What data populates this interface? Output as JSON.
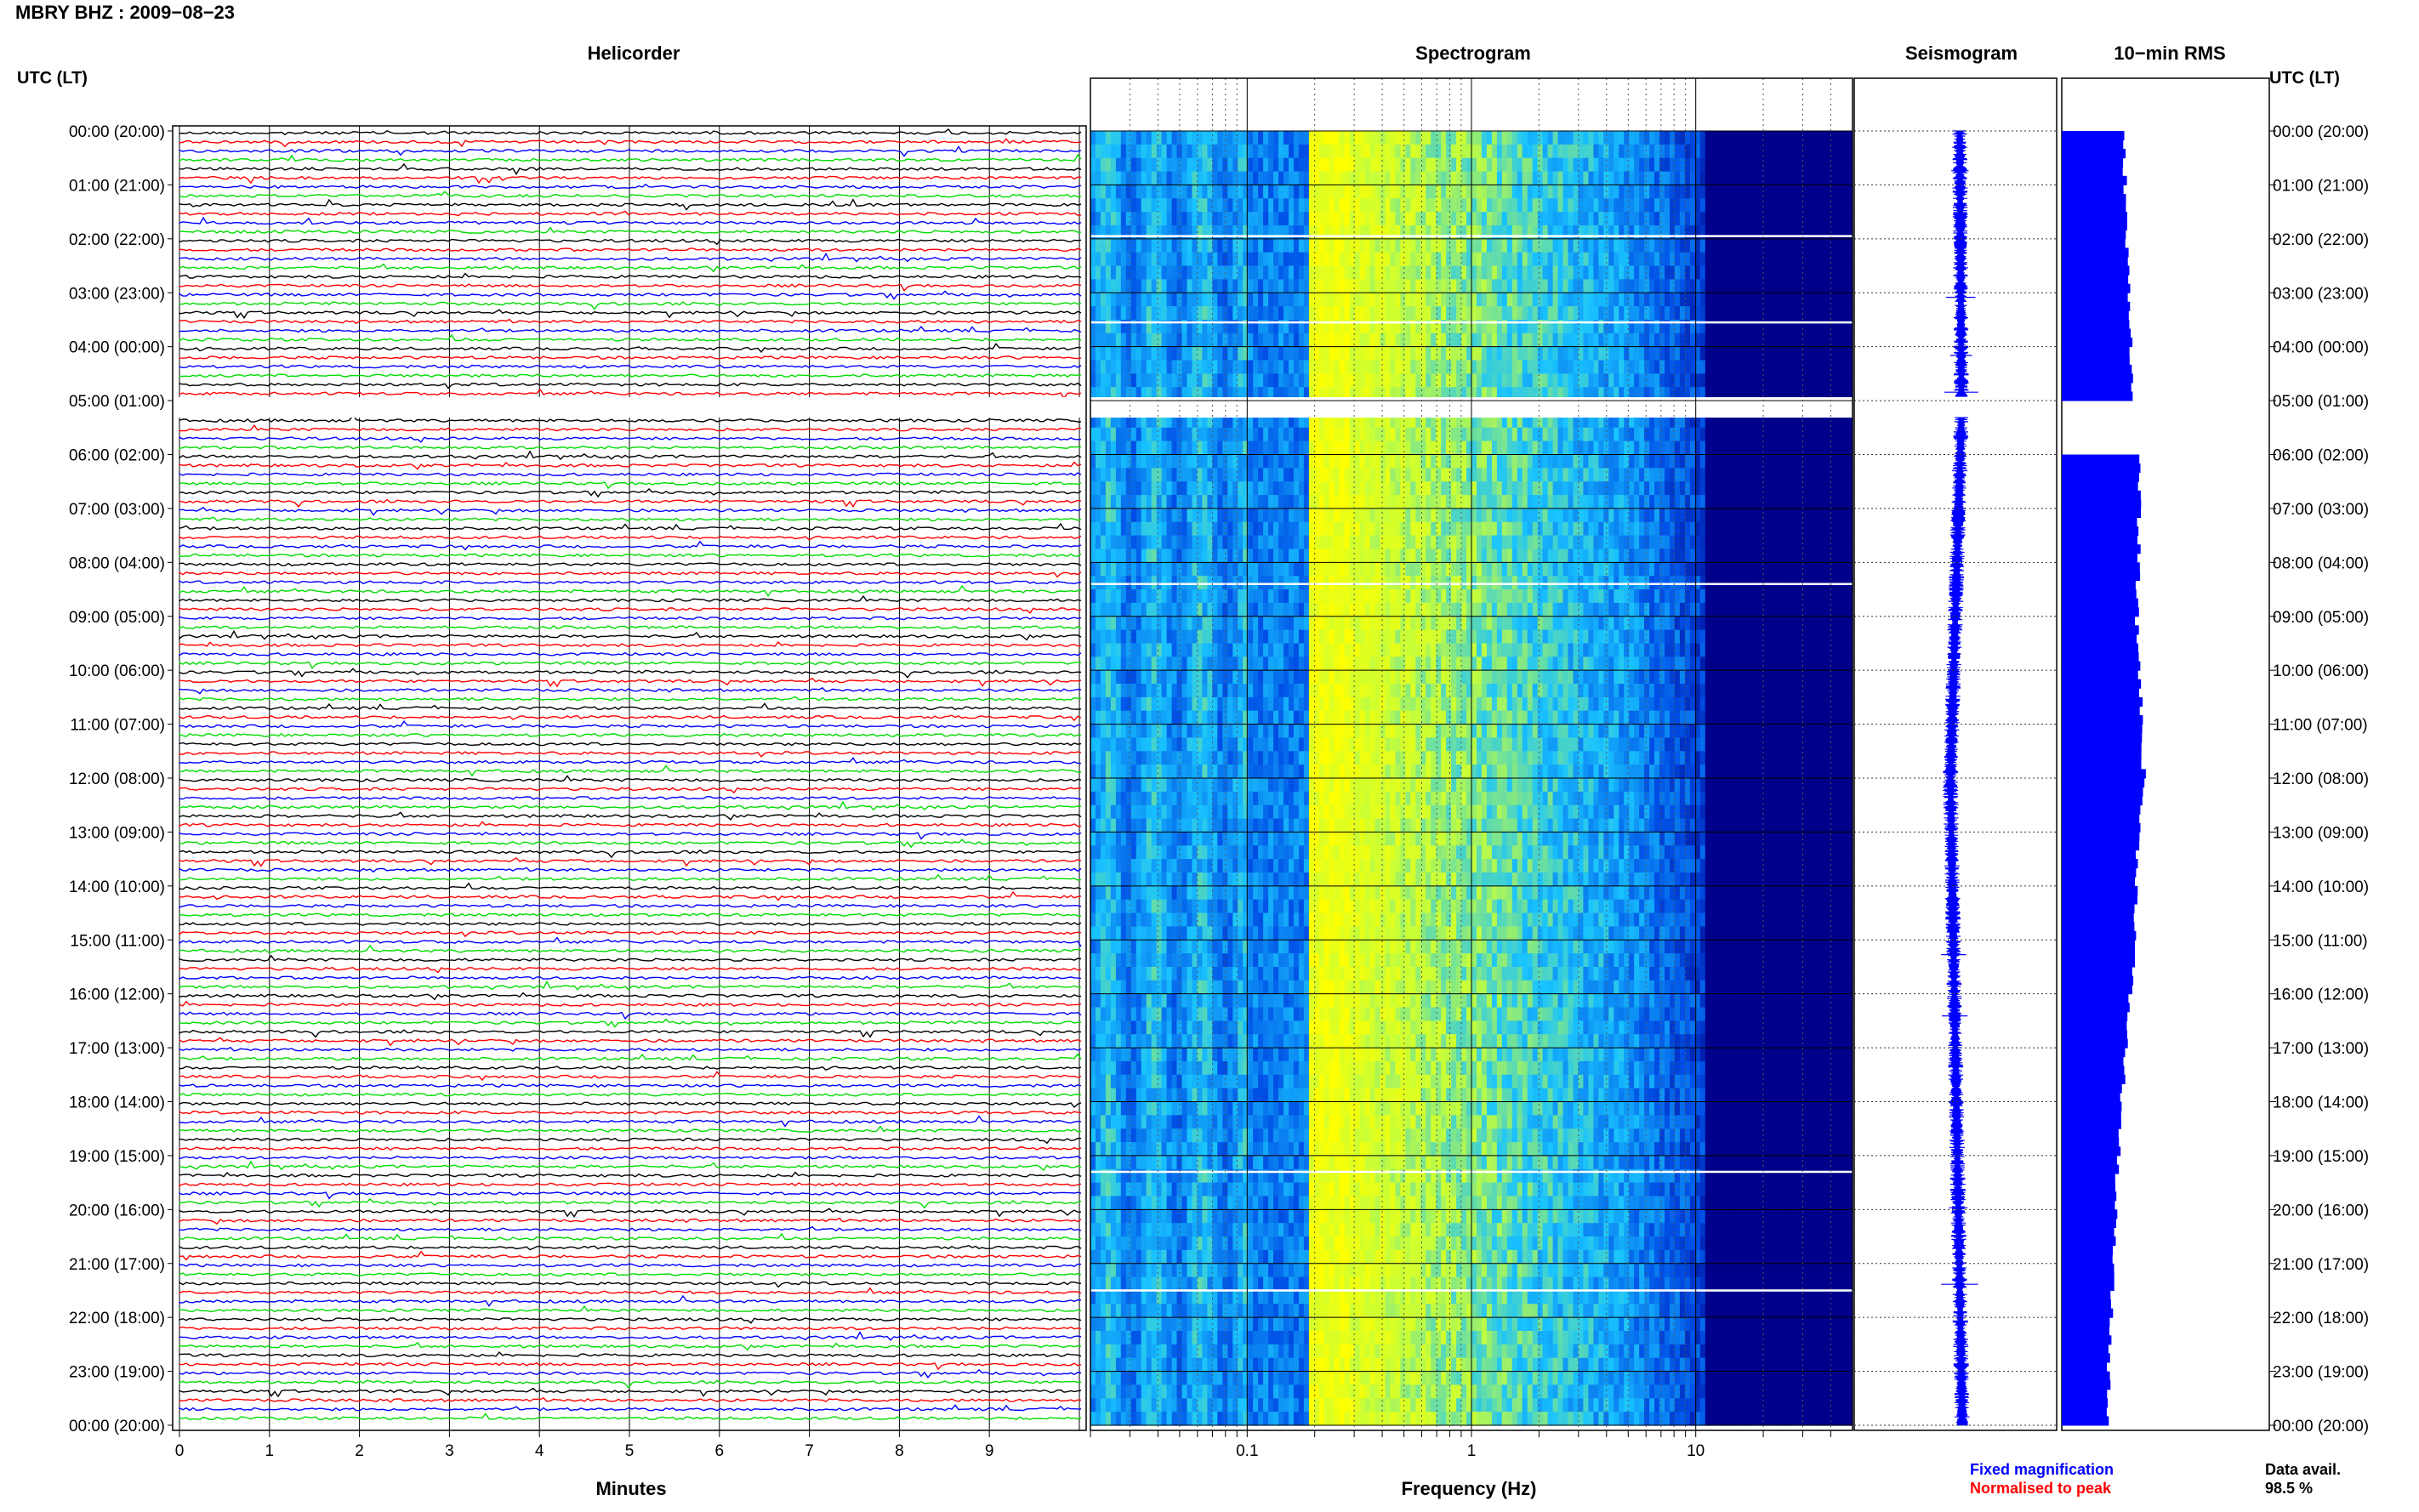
{
  "header": {
    "title": "MBRY BHZ : 2009−08−23"
  },
  "labels": {
    "left_axis": "UTC (LT)",
    "right_axis": "UTC (LT)",
    "helicorder": "Helicorder",
    "spectrogram": "Spectrogram",
    "seismogram": "Seismogram",
    "rms": "10−min RMS",
    "minutes": "Minutes",
    "frequency": "Frequency (Hz)",
    "data_avail_label": "Data avail.",
    "data_avail_value": "98.5 %"
  },
  "legend": {
    "fixed": "Fixed magnification",
    "normalised": "Normalised to peak",
    "fixed_color": "#0000ff",
    "normalised_color": "#ff0000"
  },
  "colors": {
    "trace_cycle": [
      "#000000",
      "#ff0000",
      "#0000ff",
      "#00dd00"
    ],
    "rms_bar": "#0000ff",
    "seismogram": "#0000ff"
  },
  "chart_data": [
    {
      "type": "line",
      "name": "helicorder",
      "title": "Helicorder",
      "xlabel": "Minutes",
      "x_ticks": [
        "0",
        "1",
        "2",
        "3",
        "4",
        "5",
        "6",
        "7",
        "8",
        "9"
      ],
      "xlim": [
        0,
        10
      ],
      "rows_per_hour": 6,
      "gap_hours": [
        5
      ],
      "time_labels": [
        "00:00 (20:00)",
        "01:00 (21:00)",
        "02:00 (22:00)",
        "03:00 (23:00)",
        "04:00 (00:00)",
        "05:00 (01:00)",
        "06:00 (02:00)",
        "07:00 (03:00)",
        "08:00 (04:00)",
        "09:00 (05:00)",
        "10:00 (06:00)",
        "11:00 (07:00)",
        "12:00 (08:00)",
        "13:00 (09:00)",
        "14:00 (10:00)",
        "15:00 (11:00)",
        "16:00 (12:00)",
        "17:00 (13:00)",
        "18:00 (14:00)",
        "19:00 (15:00)",
        "20:00 (16:00)",
        "21:00 (17:00)",
        "22:00 (18:00)",
        "23:00 (19:00)",
        "00:00 (20:00)"
      ]
    },
    {
      "type": "heatmap",
      "name": "spectrogram",
      "title": "Spectrogram",
      "xlabel": "Frequency (Hz)",
      "xscale": "log",
      "xlim": [
        0.02,
        50
      ],
      "x_ticks": [
        "0.1",
        "1",
        "10"
      ],
      "peak_band_hz": [
        0.2,
        0.6
      ],
      "colormap": [
        "#00008b",
        "#0050e6",
        "#19c3ff",
        "#c8ff37",
        "#ffff00"
      ]
    },
    {
      "type": "line",
      "name": "seismogram",
      "title": "Seismogram"
    },
    {
      "type": "bar",
      "name": "rms",
      "title": "10−min RMS",
      "orientation": "horizontal",
      "hours": [
        0,
        1,
        2,
        3,
        4,
        5,
        6,
        7,
        8,
        9,
        10,
        11,
        12,
        13,
        14,
        15,
        16,
        17,
        18,
        19,
        20,
        21,
        22,
        23
      ],
      "relative_values": [
        0.72,
        0.75,
        0.76,
        0.8,
        0.82,
        0.0,
        0.9,
        0.91,
        0.9,
        0.88,
        0.92,
        0.94,
        0.97,
        0.9,
        0.88,
        0.86,
        0.8,
        0.75,
        0.7,
        0.66,
        0.63,
        0.6,
        0.58,
        0.55
      ]
    }
  ]
}
